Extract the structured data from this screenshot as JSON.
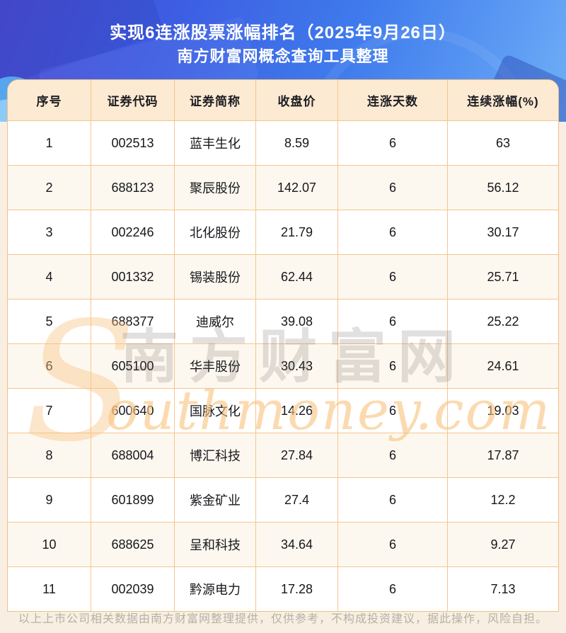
{
  "header": {
    "title_line1": "实现6连涨股票涨幅排名（2025年9月26日）",
    "title_line2": "南方财富网概念查询工具整理"
  },
  "table": {
    "columns": [
      "序号",
      "证券代码",
      "证券简称",
      "收盘价",
      "连涨天数",
      "连续涨幅(%)"
    ],
    "rows": [
      [
        "1",
        "002513",
        "蓝丰生化",
        "8.59",
        "6",
        "63"
      ],
      [
        "2",
        "688123",
        "聚辰股份",
        "142.07",
        "6",
        "56.12"
      ],
      [
        "3",
        "002246",
        "北化股份",
        "21.79",
        "6",
        "30.17"
      ],
      [
        "4",
        "001332",
        "锡装股份",
        "62.44",
        "6",
        "25.71"
      ],
      [
        "5",
        "688377",
        "迪威尔",
        "39.08",
        "6",
        "25.22"
      ],
      [
        "6",
        "605100",
        "华丰股份",
        "30.43",
        "6",
        "24.61"
      ],
      [
        "7",
        "600640",
        "国脉文化",
        "14.26",
        "6",
        "19.03"
      ],
      [
        "8",
        "688004",
        "博汇科技",
        "27.84",
        "6",
        "17.87"
      ],
      [
        "9",
        "601899",
        "紫金矿业",
        "27.4",
        "6",
        "12.2"
      ],
      [
        "10",
        "688625",
        "呈和科技",
        "34.64",
        "6",
        "9.27"
      ],
      [
        "11",
        "002039",
        "黔源电力",
        "17.28",
        "6",
        "7.13"
      ]
    ]
  },
  "watermark": {
    "script_initial": "S",
    "cjk_text": "南方财富网",
    "script_text": "outhmoney.com"
  },
  "footer": {
    "disclaimer": "以上上市公司相关数据由南方财富网整理提供，仅供参考，不构成投资建议，据此操作，风险自担。"
  },
  "colors": {
    "hero_gradient_start": "#4a4cd2",
    "hero_gradient_end": "#6fb0f6",
    "table_border": "#f2bd86",
    "table_header_bg": "#fcead2",
    "row_alt_bg": "#fdf8ef",
    "footer_text": "#b6b0a5",
    "title_text": "#ffffff"
  },
  "chart_data": {
    "type": "table",
    "title": "实现6连涨股票涨幅排名（2025年9月26日）",
    "subtitle": "南方财富网概念查询工具整理",
    "columns": [
      "序号",
      "证券代码",
      "证券简称",
      "收盘价",
      "连涨天数",
      "连续涨幅(%)"
    ],
    "rows": [
      [
        "1",
        "002513",
        "蓝丰生化",
        8.59,
        6,
        63
      ],
      [
        "2",
        "688123",
        "聚辰股份",
        142.07,
        6,
        56.12
      ],
      [
        "3",
        "002246",
        "北化股份",
        21.79,
        6,
        30.17
      ],
      [
        "4",
        "001332",
        "锡装股份",
        62.44,
        6,
        25.71
      ],
      [
        "5",
        "688377",
        "迪威尔",
        39.08,
        6,
        25.22
      ],
      [
        "6",
        "605100",
        "华丰股份",
        30.43,
        6,
        24.61
      ],
      [
        "7",
        "600640",
        "国脉文化",
        14.26,
        6,
        19.03
      ],
      [
        "8",
        "688004",
        "博汇科技",
        27.84,
        6,
        17.87
      ],
      [
        "9",
        "601899",
        "紫金矿业",
        27.4,
        6,
        12.2
      ],
      [
        "10",
        "688625",
        "呈和科技",
        34.64,
        6,
        9.27
      ],
      [
        "11",
        "002039",
        "黔源电力",
        17.28,
        6,
        7.13
      ]
    ],
    "notes": "以上上市公司相关数据由南方财富网整理提供，仅供参考，不构成投资建议，据此操作，风险自担。"
  }
}
